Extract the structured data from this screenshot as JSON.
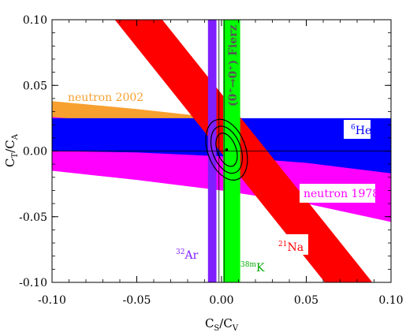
{
  "chart_data": {
    "type": "area",
    "xlabel": "C",
    "xlabel_sub": "S",
    "xlabel_sep": "/C",
    "xlabel_sub2": "V",
    "ylabel": "C",
    "ylabel_sub": "T",
    "ylabel_sep": "/C",
    "ylabel_sub2": "A",
    "xlim": [
      -0.1,
      0.1
    ],
    "ylim": [
      -0.1,
      0.1
    ],
    "xticks": [
      -0.1,
      -0.05,
      0.0,
      0.05,
      0.1
    ],
    "xtick_labels": [
      "-0.10",
      "-0.05",
      "0.00",
      "0.05",
      "0.10"
    ],
    "yticks": [
      -0.1,
      -0.05,
      0.0,
      0.05,
      0.1
    ],
    "ytick_labels": [
      "-0.10",
      "-0.05",
      "0.00",
      "0.05",
      "0.10"
    ],
    "regions": [
      {
        "key": "neutron2002",
        "color": "#f7a030",
        "upper": [
          [
            -0.1,
            0.038
          ],
          [
            -0.05,
            0.032
          ],
          [
            0.0,
            0.025
          ],
          [
            0.05,
            0.015
          ],
          [
            0.1,
            0.003
          ]
        ],
        "lower": [
          [
            -0.1,
            0.024
          ],
          [
            -0.05,
            0.017
          ],
          [
            0.0,
            0.01
          ],
          [
            0.05,
            0.0
          ],
          [
            0.1,
            -0.017
          ]
        ]
      },
      {
        "key": "neutron1978",
        "color": "#ff00ff",
        "upper": [
          [
            -0.1,
            0.026
          ],
          [
            -0.05,
            0.02
          ],
          [
            0.0,
            0.012
          ],
          [
            0.05,
            0.002
          ],
          [
            0.1,
            -0.012
          ]
        ],
        "lower": [
          [
            -0.1,
            -0.015
          ],
          [
            -0.05,
            -0.022
          ],
          [
            0.0,
            -0.03
          ],
          [
            0.05,
            -0.04
          ],
          [
            0.1,
            -0.054
          ]
        ]
      },
      {
        "key": "he6",
        "color": "#0000ff",
        "upper": [
          [
            -0.1,
            0.025
          ],
          [
            0.1,
            0.025
          ]
        ],
        "lower": [
          [
            -0.1,
            0.0
          ],
          [
            -0.05,
            -0.001
          ],
          [
            0.0,
            -0.004
          ],
          [
            0.05,
            -0.009
          ],
          [
            0.1,
            -0.017
          ]
        ]
      },
      {
        "key": "na21",
        "color": "#ff0000",
        "upper": [
          [
            -0.063,
            0.1
          ],
          [
            0.061,
            -0.1
          ]
        ],
        "lower": [
          [
            -0.035,
            0.1
          ],
          [
            0.089,
            -0.1
          ]
        ]
      },
      {
        "key": "ar32",
        "color": "#7f1fff",
        "x": [
          -0.008,
          -0.003
        ],
        "y": [
          -0.1,
          0.1
        ]
      },
      {
        "key": "k38m",
        "color": "#00ff00",
        "x": [
          0.001,
          0.011
        ],
        "y": [
          -0.1,
          0.1
        ]
      }
    ],
    "fierz_lines": [
      -0.0015,
      0.0015
    ],
    "ellipse_center": [
      0.003,
      0.001
    ],
    "labels": {
      "neutron2002": {
        "text": "neutron 2002",
        "color": "#f7a030"
      },
      "he6": {
        "sup": "6",
        "text": "He",
        "color": "#0000ff"
      },
      "neutron1978": {
        "text": "neutron 1978",
        "color": "#ff00ff"
      },
      "na21": {
        "sup": "21",
        "text": "Na",
        "color": "#ff0000"
      },
      "ar32": {
        "sup": "32",
        "text": "Ar",
        "color": "#7f1fff"
      },
      "k38m": {
        "sup": "38m",
        "text": "K",
        "color": "#00aa00"
      },
      "fierz": {
        "text": "(0⁺→0⁺) Fierz",
        "color": "#555555"
      }
    }
  }
}
